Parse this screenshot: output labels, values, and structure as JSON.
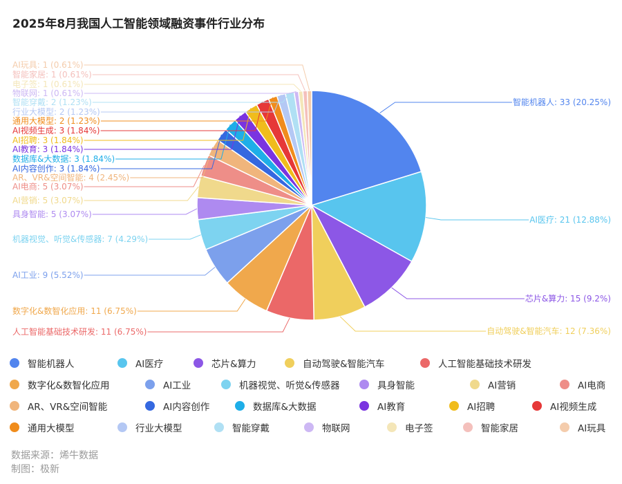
{
  "title": "2025年8月我国人工智能领域融资事件行业分布",
  "source_label": "数据来源：烯牛数据",
  "maker_label": "制图：极新",
  "chart_data": {
    "type": "pie",
    "title": "2025年8月我国人工智能领域融资事件行业分布",
    "legend_position": "bottom",
    "slices": [
      {
        "name": "智能机器人",
        "value": 33,
        "pct": "20.25%",
        "color": "#5285EE"
      },
      {
        "name": "AI医疗",
        "value": 21,
        "pct": "12.88%",
        "color": "#58C5EE"
      },
      {
        "name": "芯片&算力",
        "value": 15,
        "pct": "9.2%",
        "color": "#8C57E6"
      },
      {
        "name": "自动驾驶&智能汽车",
        "value": 12,
        "pct": "7.36%",
        "color": "#F0CF5C"
      },
      {
        "name": "人工智能基础技术研发",
        "value": 11,
        "pct": "6.75%",
        "color": "#EB6868"
      },
      {
        "name": "数字化&数智化应用",
        "value": 11,
        "pct": "6.75%",
        "color": "#F0A84C"
      },
      {
        "name": "AI工业",
        "value": 9,
        "pct": "5.52%",
        "color": "#7CA0EC"
      },
      {
        "name": "机器视觉、听觉&传感器",
        "value": 7,
        "pct": "4.29%",
        "color": "#7DD3F0"
      },
      {
        "name": "具身智能",
        "value": 5,
        "pct": "3.07%",
        "color": "#AE8AF0"
      },
      {
        "name": "AI营销",
        "value": 5,
        "pct": "3.07%",
        "color": "#F0D98C"
      },
      {
        "name": "AI电商",
        "value": 5,
        "pct": "3.07%",
        "color": "#EE8E88"
      },
      {
        "name": "AR、VR&空间智能",
        "value": 4,
        "pct": "2.45%",
        "color": "#F0B57C"
      },
      {
        "name": "AI内容创作",
        "value": 3,
        "pct": "1.84%",
        "color": "#3568E0"
      },
      {
        "name": "数据库&大数据",
        "value": 3,
        "pct": "1.84%",
        "color": "#1EAEE8"
      },
      {
        "name": "AI教育",
        "value": 3,
        "pct": "1.84%",
        "color": "#7A34E0"
      },
      {
        "name": "AI招聘",
        "value": 3,
        "pct": "1.84%",
        "color": "#F0BC1C"
      },
      {
        "name": "AI视频生成",
        "value": 3,
        "pct": "1.84%",
        "color": "#E63838"
      },
      {
        "name": "通用大模型",
        "value": 2,
        "pct": "1.23%",
        "color": "#F08C1C"
      },
      {
        "name": "行业大模型",
        "value": 2,
        "pct": "1.23%",
        "color": "#B4C8F4"
      },
      {
        "name": "智能穿戴",
        "value": 2,
        "pct": "1.23%",
        "color": "#B0E0F4"
      },
      {
        "name": "物联网",
        "value": 1,
        "pct": "0.61%",
        "color": "#CDB8F4"
      },
      {
        "name": "电子签",
        "value": 1,
        "pct": "0.61%",
        "color": "#F4E6B8"
      },
      {
        "name": "智能家居",
        "value": 1,
        "pct": "0.61%",
        "color": "#F4C0BC"
      },
      {
        "name": "AI玩具",
        "value": 1,
        "pct": "0.61%",
        "color": "#F4CCAC"
      }
    ]
  }
}
